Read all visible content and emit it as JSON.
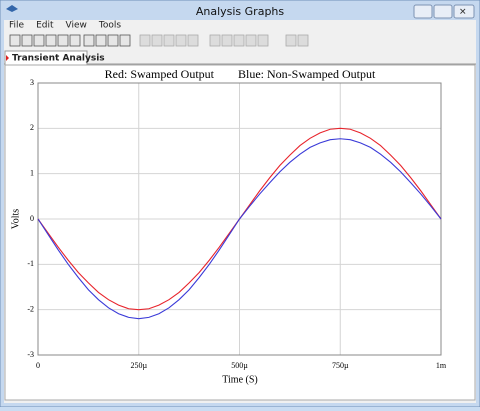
{
  "window": {
    "title": "Analysis Graphs"
  },
  "menu": [
    "File",
    "Edit",
    "View",
    "Tools"
  ],
  "tab": "Transient Analysis",
  "chart_data": {
    "type": "line",
    "title": "Red: Swamped Output        Blue: Non-Swamped Output",
    "x_label": "Time (S)",
    "y_label": "Volts",
    "x": [
      0,
      2.5e-05,
      5e-05,
      7.5e-05,
      0.0001,
      0.000125,
      0.00015,
      0.000175,
      0.0002,
      0.000225,
      0.00025,
      0.000275,
      0.0003,
      0.000325,
      0.00035,
      0.000375,
      0.0004,
      0.000425,
      0.00045,
      0.000475,
      0.0005,
      0.000525,
      0.00055,
      0.000575,
      0.0006,
      0.000625,
      0.00065,
      0.000675,
      0.0007,
      0.000725,
      0.00075,
      0.000775,
      0.0008,
      0.000825,
      0.00085,
      0.000875,
      0.0009,
      0.000925,
      0.00095,
      0.000975,
      0.001
    ],
    "series": [
      {
        "name": "Swamped Output",
        "color": "#e8242c",
        "values": [
          0,
          -0.31,
          -0.62,
          -0.91,
          -1.18,
          -1.41,
          -1.62,
          -1.78,
          -1.9,
          -1.98,
          -2,
          -1.98,
          -1.9,
          -1.78,
          -1.62,
          -1.41,
          -1.18,
          -0.91,
          -0.62,
          -0.31,
          0,
          0.31,
          0.62,
          0.91,
          1.18,
          1.41,
          1.62,
          1.78,
          1.9,
          1.98,
          2,
          1.98,
          1.9,
          1.78,
          1.62,
          1.41,
          1.18,
          0.91,
          0.62,
          0.31,
          0
        ]
      },
      {
        "name": "Non-Swamped Output",
        "color": "#3a3ad8",
        "values": [
          0,
          -0.34,
          -0.68,
          -1.0,
          -1.29,
          -1.56,
          -1.78,
          -1.96,
          -2.09,
          -2.17,
          -2.2,
          -2.17,
          -2.09,
          -1.96,
          -1.78,
          -1.56,
          -1.29,
          -1.0,
          -0.68,
          -0.34,
          0,
          0.28,
          0.55,
          0.8,
          1.04,
          1.25,
          1.43,
          1.58,
          1.68,
          1.75,
          1.77,
          1.75,
          1.68,
          1.58,
          1.43,
          1.25,
          1.04,
          0.8,
          0.55,
          0.28,
          0
        ]
      }
    ],
    "xlim": [
      0,
      0.001
    ],
    "xticks": [
      0,
      {
        "value": 0.00025,
        "label": "250µ"
      },
      {
        "value": 0.0005,
        "label": "500µ"
      },
      {
        "value": 0.00075,
        "label": "750µ"
      },
      {
        "value": 0.001,
        "label": "1m"
      }
    ],
    "ylim": [
      -3,
      3
    ],
    "yticks": [
      -3,
      -2,
      -1,
      0,
      1,
      2,
      3
    ],
    "grid": true
  }
}
